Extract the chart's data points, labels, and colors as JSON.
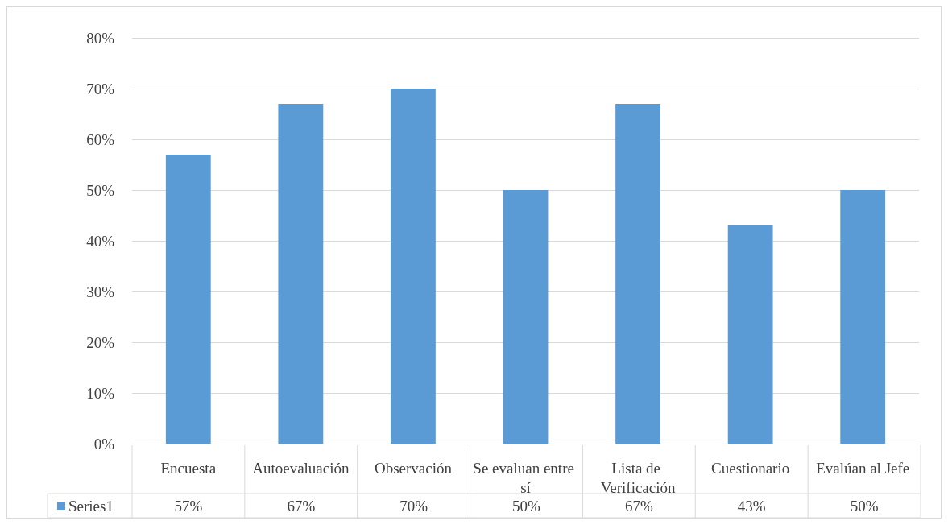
{
  "chart_data": {
    "type": "bar",
    "categories": [
      "Encuesta",
      "Autoevaluación",
      "Observación",
      "Se evaluan entre sí",
      "Lista de Verificación",
      "Cuestionario",
      "Evalúan al Jefe"
    ],
    "series": [
      {
        "name": "Series1",
        "color": "#5b9bd5",
        "values": [
          57,
          67,
          70,
          50,
          67,
          43,
          50
        ],
        "value_labels": [
          "57%",
          "67%",
          "70%",
          "50%",
          "67%",
          "43%",
          "50%"
        ]
      }
    ],
    "ylim": [
      0,
      80
    ],
    "yticks": [
      {
        "value": 0,
        "label": "0%"
      },
      {
        "value": 10,
        "label": "10%"
      },
      {
        "value": 20,
        "label": "20%"
      },
      {
        "value": 30,
        "label": "30%"
      },
      {
        "value": 40,
        "label": "40%"
      },
      {
        "value": 50,
        "label": "50%"
      },
      {
        "value": 60,
        "label": "60%"
      },
      {
        "value": 70,
        "label": "70%"
      },
      {
        "value": 80,
        "label": "80%"
      }
    ],
    "grid": "y",
    "legend": "bottom left"
  }
}
